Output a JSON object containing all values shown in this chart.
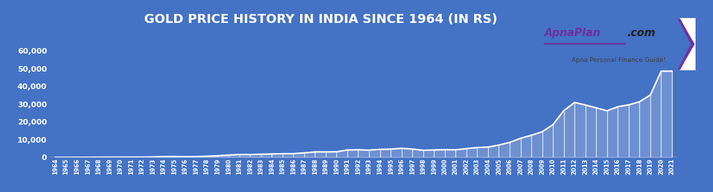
{
  "title": "GOLD PRICE HISTORY IN INDIA SINCE 1964 (IN RS)",
  "background_color": "#4472C4",
  "line_color": "white",
  "fill_color": "white",
  "title_color": "white",
  "title_fontsize": 13,
  "years": [
    1964,
    1965,
    1966,
    1967,
    1968,
    1969,
    1970,
    1971,
    1972,
    1973,
    1974,
    1975,
    1976,
    1977,
    1978,
    1979,
    1980,
    1981,
    1982,
    1983,
    1984,
    1985,
    1986,
    1987,
    1988,
    1989,
    1990,
    1991,
    1992,
    1993,
    1994,
    1995,
    1996,
    1997,
    1998,
    1999,
    2000,
    2001,
    2002,
    2003,
    2004,
    2005,
    2006,
    2007,
    2008,
    2009,
    2010,
    2011,
    2012,
    2013,
    2014,
    2015,
    2016,
    2017,
    2018,
    2019,
    2020,
    2021
  ],
  "prices": [
    63,
    71,
    84,
    102,
    162,
    176,
    184,
    193,
    202,
    278,
    506,
    540,
    432,
    486,
    685,
    937,
    1330,
    1670,
    1645,
    1800,
    1970,
    2130,
    2140,
    2570,
    3130,
    3140,
    3200,
    4225,
    4334,
    4140,
    4558,
    4680,
    5160,
    4725,
    4045,
    4234,
    4400,
    4300,
    4990,
    5600,
    5850,
    7000,
    8500,
    10800,
    12500,
    14500,
    18500,
    26400,
    31050,
    29600,
    28006,
    26343,
    28623,
    29667,
    31438,
    35220,
    48651,
    48720
  ],
  "ylim": [
    0,
    65000
  ],
  "yticks": [
    0,
    10000,
    20000,
    30000,
    40000,
    50000,
    60000
  ],
  "ytick_labels": [
    "0",
    "10,000",
    "20,000",
    "30,000",
    "40,000",
    "50,000",
    "60,000"
  ],
  "tick_color": "white",
  "tick_fontsize": 8,
  "logo_bg": "white",
  "logo_border_color": "#7030A0",
  "logo_main_color": "#7030A0",
  "logo_sub_color": "#404040",
  "watermark_text_sub": "Apna Personal Finance Guide!"
}
